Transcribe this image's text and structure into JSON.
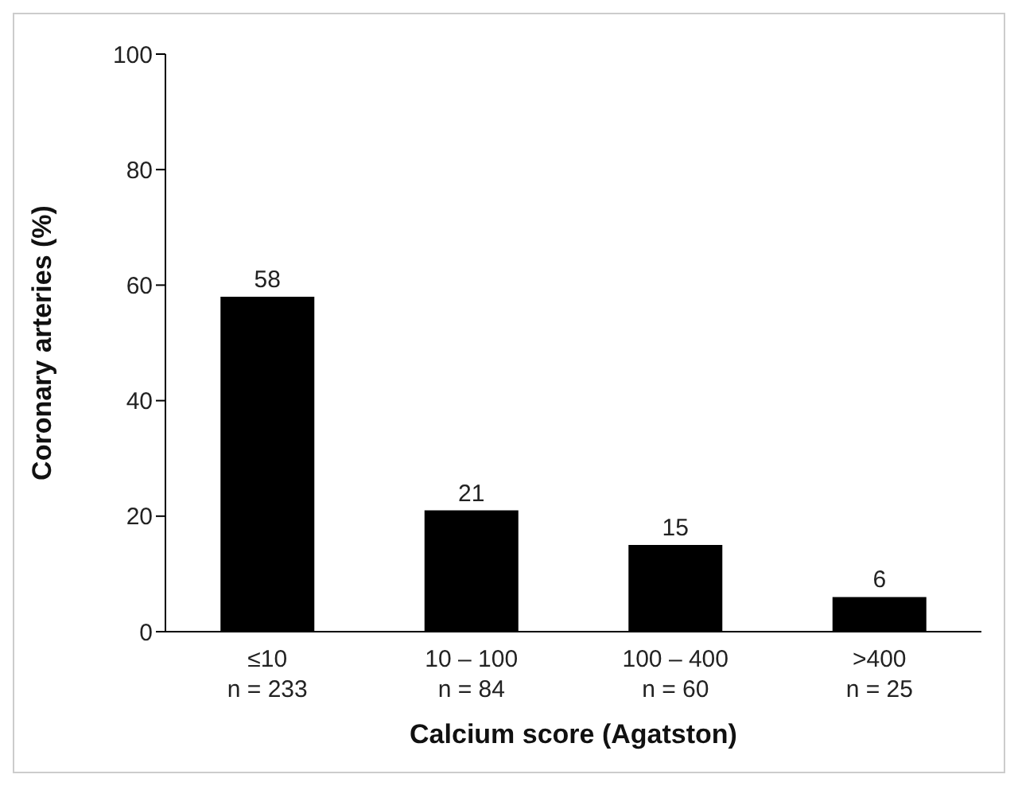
{
  "chart_data": {
    "type": "bar",
    "xlabel": "Calcium score (Agatston)",
    "ylabel": "Coronary arteries (%)",
    "categories": [
      "≤10\nn = 233",
      "10 – 100\nn = 84",
      "100 – 400\nn = 60",
      ">400\nn = 25"
    ],
    "values": [
      58,
      21,
      15,
      6
    ],
    "color": "#000000",
    "ylim": [
      0,
      100
    ],
    "yticks": [
      0,
      20,
      40,
      60,
      80,
      100
    ],
    "data_labels": true,
    "grid": false,
    "legend": false
  }
}
